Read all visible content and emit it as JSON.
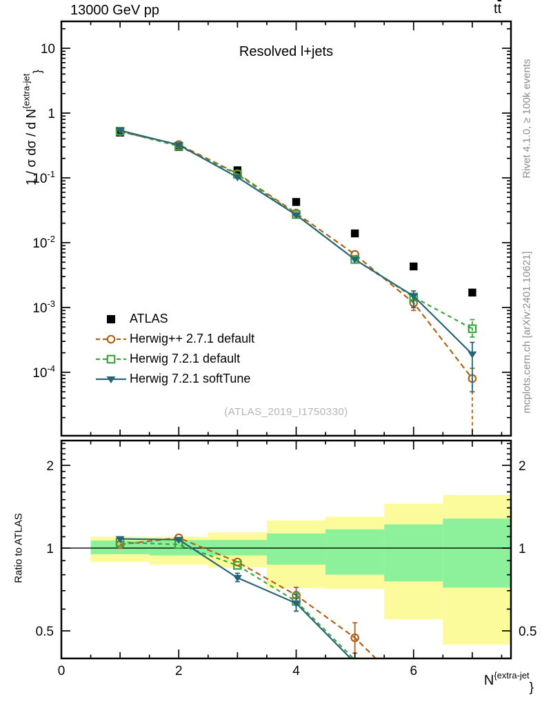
{
  "title_bar": {
    "beam": "13000 GeV pp",
    "process_t1": "t",
    "process_t2": "t"
  },
  "right_margin": {
    "top_credit": "Rivet 4.1.0, ≥ 100k events",
    "bottom_credit": "mcplots.cern.ch [arXiv:2401.10621]"
  },
  "watermark": "(ATLAS_2019_I1750330)",
  "colors": {
    "yellow_band": "#fbfb9b",
    "green_band": "#8df09b",
    "frame": "#000000",
    "atlas": "#000000",
    "herwigpp": "#b25f16",
    "herwig7_default": "#3ca43c",
    "herwig7_softtune": "#286478"
  },
  "chart_data": {
    "type": "line",
    "subtitle": "Resolved l+jets",
    "xlabel": {
      "base": "N",
      "sup": "{extra-jet",
      "brace": "}"
    },
    "ylabel_main": {
      "base": "1 / σ dσ / d N",
      "sup": "{extra-jet",
      "brace": "}"
    },
    "ylabel_ratio": "Ratio to ATLAS",
    "x_axis": {
      "lim": [
        0,
        7.659
      ],
      "major_ticks": [
        0,
        2,
        4,
        6
      ],
      "major_labels": [
        "0",
        "2",
        "4",
        "6"
      ],
      "medium_ticks": [
        1,
        3,
        5,
        7
      ],
      "minor_ticks": [
        0.5,
        1.5,
        2.5,
        3.5,
        4.5,
        5.5,
        6.5,
        7.5
      ]
    },
    "y_axis_main": {
      "scale": "log",
      "lim": [
        1.05e-05,
        26
      ],
      "major_ticks": [
        10,
        1,
        0.1,
        0.01,
        0.001,
        0.0001
      ],
      "major_labels": [
        {
          "m": "10",
          "e": ""
        },
        {
          "m": "1",
          "e": ""
        },
        {
          "m": "10",
          "e": "-1"
        },
        {
          "m": "10",
          "e": "-2"
        },
        {
          "m": "10",
          "e": "-3"
        },
        {
          "m": "10",
          "e": "-4"
        }
      ]
    },
    "y_axis_ratio": {
      "scale": "log",
      "lim": [
        0.397,
        2.46
      ],
      "major_ticks": [
        2,
        1,
        0.5
      ],
      "major_labels": [
        "2",
        "1",
        "0.5"
      ],
      "minor_ticks": [
        0.6,
        0.7,
        0.8,
        0.9,
        1.1,
        1.2,
        1.3,
        1.4,
        1.5,
        1.6,
        1.7,
        1.8,
        1.9,
        2.1,
        2.2,
        2.3,
        2.4
      ]
    },
    "x": [
      1,
      2,
      3,
      4,
      5,
      6,
      7
    ],
    "series": [
      {
        "name": "ATLAS",
        "color_key": "atlas",
        "marker": "filled-square",
        "line": "none",
        "y": [
          0.5,
          0.3,
          0.131,
          0.0425,
          0.0139,
          0.0043,
          0.0017
        ]
      },
      {
        "name": "Herwig++ 2.7.1 default",
        "color_key": "herwigpp",
        "marker": "open-circle",
        "line": "dashed",
        "y": [
          0.515,
          0.327,
          0.1165,
          0.0286,
          0.0066,
          0.00118,
          8e-05
        ],
        "yerr": [
          null,
          null,
          null,
          null,
          null,
          [
            0.0009,
            0.0016
          ],
          [
            5e-06,
            0.000115
          ]
        ],
        "ratio": [
          1.03,
          1.09,
          0.89,
          0.674,
          0.472,
          0.29,
          null
        ],
        "ratio_err": [
          null,
          null,
          null,
          [
            0.63,
            0.72
          ],
          [
            0.415,
            0.535
          ],
          null,
          null
        ]
      },
      {
        "name": "Herwig 7.2.1 default",
        "color_key": "herwig7_default",
        "marker": "open-square",
        "line": "dashed",
        "y": [
          0.525,
          0.309,
          0.1135,
          0.0272,
          0.0055,
          0.00145,
          0.00047
        ],
        "yerr": [
          null,
          null,
          null,
          null,
          null,
          null,
          [
            0.00035,
            0.00065
          ]
        ],
        "ratio": [
          1.05,
          1.03,
          0.865,
          0.64,
          0.392,
          null,
          null
        ],
        "ratio_err": [
          null,
          null,
          null,
          [
            0.59,
            0.69
          ],
          null,
          null,
          null
        ]
      },
      {
        "name": "Herwig 7.2.1 softTune",
        "color_key": "herwig7_softtune",
        "marker": "filled-triangle-down",
        "line": "solid",
        "y": [
          0.54,
          0.322,
          0.1022,
          0.0268,
          0.0055,
          0.0015,
          0.00019
        ],
        "yerr": [
          null,
          null,
          null,
          null,
          null,
          [
            0.001,
            0.0018
          ],
          [
            5e-05,
            0.00029
          ]
        ],
        "ratio": [
          1.08,
          1.073,
          0.78,
          0.63,
          0.383,
          null,
          null
        ],
        "ratio_err": [
          null,
          null,
          [
            0.755,
            0.81
          ],
          [
            0.59,
            0.68
          ],
          null,
          null,
          null
        ]
      }
    ],
    "ratio_reference": 1,
    "ratio_bands": [
      {
        "x0": 0.5,
        "x1": 1.5,
        "yellow": [
          0.89,
          1.1
        ],
        "green": [
          0.95,
          1.065
        ]
      },
      {
        "x0": 1.5,
        "x1": 2.5,
        "yellow": [
          0.87,
          1.1
        ],
        "green": [
          0.94,
          1.07
        ]
      },
      {
        "x0": 2.5,
        "x1": 3.5,
        "yellow": [
          0.85,
          1.14
        ],
        "green": [
          0.94,
          1.07
        ]
      },
      {
        "x0": 3.5,
        "x1": 4.5,
        "yellow": [
          0.715,
          1.26
        ],
        "green": [
          0.87,
          1.13
        ]
      },
      {
        "x0": 4.5,
        "x1": 5.5,
        "yellow": [
          0.71,
          1.3
        ],
        "green": [
          0.8,
          1.17
        ]
      },
      {
        "x0": 5.5,
        "x1": 6.5,
        "yellow": [
          0.55,
          1.45
        ],
        "green": [
          0.757,
          1.22
        ]
      },
      {
        "x0": 6.5,
        "x1": 7.659,
        "yellow": [
          0.446,
          1.56
        ],
        "green": [
          0.718,
          1.28
        ]
      }
    ]
  }
}
